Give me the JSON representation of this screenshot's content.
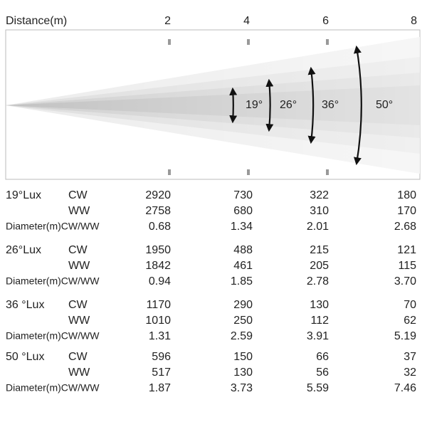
{
  "header": {
    "label": "Distance(m)",
    "distances": [
      "2",
      "4",
      "6",
      "8"
    ]
  },
  "beam_angles": [
    "19°",
    "26°",
    "36°",
    "50°"
  ],
  "groups": [
    {
      "label": "19°Lux",
      "rows": [
        {
          "label": "CW",
          "values": [
            "2920",
            "730",
            "322",
            "180"
          ]
        },
        {
          "label": "WW",
          "values": [
            "2758",
            "680",
            "310",
            "170"
          ]
        },
        {
          "label": "Diameter(m)CW/WW",
          "values": [
            "0.68",
            "1.34",
            "2.01",
            "2.68"
          ]
        }
      ]
    },
    {
      "label": "26°Lux",
      "rows": [
        {
          "label": "CW",
          "values": [
            "1950",
            "488",
            "215",
            "121"
          ]
        },
        {
          "label": "WW",
          "values": [
            "1842",
            "461",
            "205",
            "115"
          ]
        },
        {
          "label": "Diameter(m)CW/WW",
          "values": [
            "0.94",
            "1.85",
            "2.78",
            "3.70"
          ]
        }
      ]
    },
    {
      "label": "36 °Lux",
      "rows": [
        {
          "label": "CW",
          "values": [
            "1170",
            "290",
            "130",
            "70"
          ]
        },
        {
          "label": "WW",
          "values": [
            "1010",
            "250",
            "112",
            "62"
          ]
        },
        {
          "label": "Diameter(m)CW/WW",
          "values": [
            "1.31",
            "2.59",
            "3.91",
            "5.19"
          ]
        }
      ]
    },
    {
      "label": "50 °Lux",
      "rows": [
        {
          "label": "CW",
          "values": [
            "596",
            "150",
            "66",
            "37"
          ]
        },
        {
          "label": "WW",
          "values": [
            "517",
            "130",
            "56",
            "32"
          ]
        },
        {
          "label": "Diameter(m)CW/WW",
          "values": [
            "1.87",
            "3.73",
            "5.59",
            "7.46"
          ]
        }
      ]
    }
  ]
}
